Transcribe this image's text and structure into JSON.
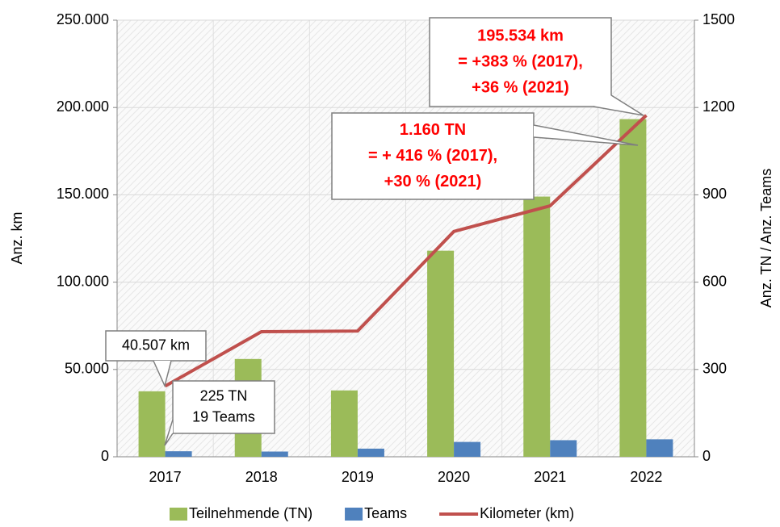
{
  "chart_data": {
    "type": "bar",
    "categories": [
      "2017",
      "2018",
      "2019",
      "2020",
      "2021",
      "2022"
    ],
    "ylabel": "Anz. km",
    "y2label": "Anz. TN / Anz. Teams",
    "ylim": [
      0,
      250000
    ],
    "yticks": [
      0,
      {
        "value": 50000,
        "label": "50.000"
      },
      {
        "value": 100000,
        "label": "100.000"
      },
      {
        "value": 150000,
        "label": "150.000"
      },
      {
        "value": 200000,
        "label": "200.000"
      },
      {
        "value": 250000,
        "label": "250.000"
      }
    ],
    "y2lim": [
      0,
      1500
    ],
    "y2ticks": [
      0,
      300,
      600,
      900,
      1200,
      1500
    ],
    "grid": true,
    "legend": "bottom",
    "series": [
      {
        "name": "Teilnehmende (TN)",
        "type": "bar",
        "axis": "y2",
        "color": "#9bbb59",
        "values": [
          225,
          336,
          228,
          708,
          894,
          1160
        ]
      },
      {
        "name": "Teams",
        "type": "bar",
        "axis": "y2",
        "color": "#4f81bd",
        "values": [
          19,
          18,
          28,
          51,
          57,
          60
        ]
      },
      {
        "name": "Kilometer (km)",
        "type": "line",
        "axis": "y",
        "color": "#c0504d",
        "values": [
          40507,
          71600,
          72000,
          129000,
          143700,
          195534
        ]
      }
    ],
    "annotations": [
      {
        "lines": [
          "40.507 km"
        ],
        "color": "#000000"
      },
      {
        "lines": [
          "225 TN",
          "19 Teams"
        ],
        "color": "#000000"
      },
      {
        "lines": [
          "195.534 km",
          "= +383 %  (2017),",
          "+36 %  (2021)"
        ],
        "color": "#ff0000"
      },
      {
        "lines": [
          "1.160 TN",
          "= + 416 %  (2017),",
          "+30 %  (2021)"
        ],
        "color": "#ff0000"
      }
    ]
  }
}
